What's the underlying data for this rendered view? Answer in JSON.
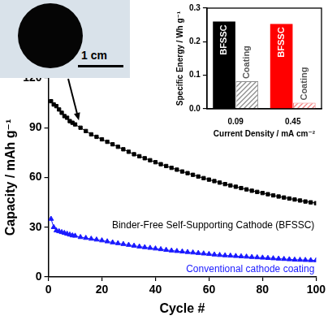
{
  "chart_data": [
    {
      "type": "line",
      "x_label": "Cycle #",
      "y_label": "Capacity / mAh g⁻¹",
      "xlim": [
        0,
        100
      ],
      "xticks": [
        0,
        20,
        40,
        60,
        80,
        100
      ],
      "ylim": [
        0,
        120
      ],
      "yticks": [
        0,
        30,
        60,
        90,
        120
      ],
      "grid": false,
      "annotations": [
        "1 cm"
      ],
      "x": [
        1,
        2,
        3,
        4,
        5,
        6,
        7,
        8,
        9,
        10,
        12,
        14,
        16,
        18,
        20,
        22,
        24,
        26,
        28,
        30,
        32,
        34,
        36,
        38,
        40,
        42,
        44,
        46,
        48,
        50,
        52,
        54,
        56,
        58,
        60,
        62,
        64,
        66,
        68,
        70,
        72,
        74,
        76,
        78,
        80,
        82,
        84,
        86,
        88,
        90,
        92,
        94,
        96,
        98,
        100
      ],
      "series": [
        {
          "name": "Binder-Free Self-Supporting Cathode (BFSSC)",
          "color": "#000000",
          "marker": "square",
          "line_style": "solid",
          "values": [
            106,
            104,
            103,
            101,
            99,
            97,
            96,
            94,
            93,
            92,
            90,
            88,
            86,
            84.5,
            83,
            81.5,
            80,
            78.5,
            77,
            75.5,
            74,
            72.8,
            71.6,
            70.4,
            69.2,
            68,
            66.9,
            65.8,
            64.7,
            63.6,
            62.6,
            61.6,
            60.6,
            59.6,
            58.7,
            57.8,
            56.9,
            56,
            55.2,
            54.4,
            53.6,
            52.8,
            52,
            51.3,
            50.6,
            49.9,
            49.2,
            48.5,
            47.9,
            47.3,
            46.7,
            46.1,
            45.5,
            45,
            44.5
          ]
        },
        {
          "name": "Conventional cathode coating",
          "color": "#1a1aff",
          "marker": "triangle",
          "line_style": "solid",
          "values": [
            35,
            30,
            28,
            27.5,
            27,
            26.5,
            26,
            25.5,
            25,
            24.8,
            24,
            23.5,
            23,
            22.5,
            22,
            21.4,
            20.8,
            20.3,
            19.8,
            19.3,
            18.8,
            18.3,
            17.9,
            17.5,
            17.1,
            16.7,
            16.3,
            15.9,
            15.6,
            15.3,
            15,
            14.7,
            14.4,
            14.1,
            13.8,
            13.5,
            13.2,
            13,
            12.8,
            12.6,
            12.4,
            12.2,
            12,
            11.8,
            11.6,
            11.4,
            11.2,
            11,
            10.8,
            10.6,
            10.4,
            10.3,
            10.2,
            10.1,
            10
          ]
        }
      ]
    },
    {
      "type": "bar",
      "x_label": "Current Density / mA cm⁻²",
      "y_label": "Specific Energy / Wh g⁻¹",
      "categories": [
        "0.09",
        "0.45"
      ],
      "ylim": [
        0,
        0.3
      ],
      "yticks": [
        {
          "value": 0,
          "label": "0.0"
        },
        0.1,
        0.2,
        0.3
      ],
      "grid": false,
      "series": [
        {
          "name": "BFSSC",
          "colors": [
            "#000000",
            "#ff0000"
          ],
          "values": [
            0.26,
            0.253
          ]
        },
        {
          "name": "Coating",
          "colors": [
            "#8c8c8c",
            "#f08080"
          ],
          "values": [
            0.082,
            0.018
          ]
        }
      ]
    }
  ]
}
